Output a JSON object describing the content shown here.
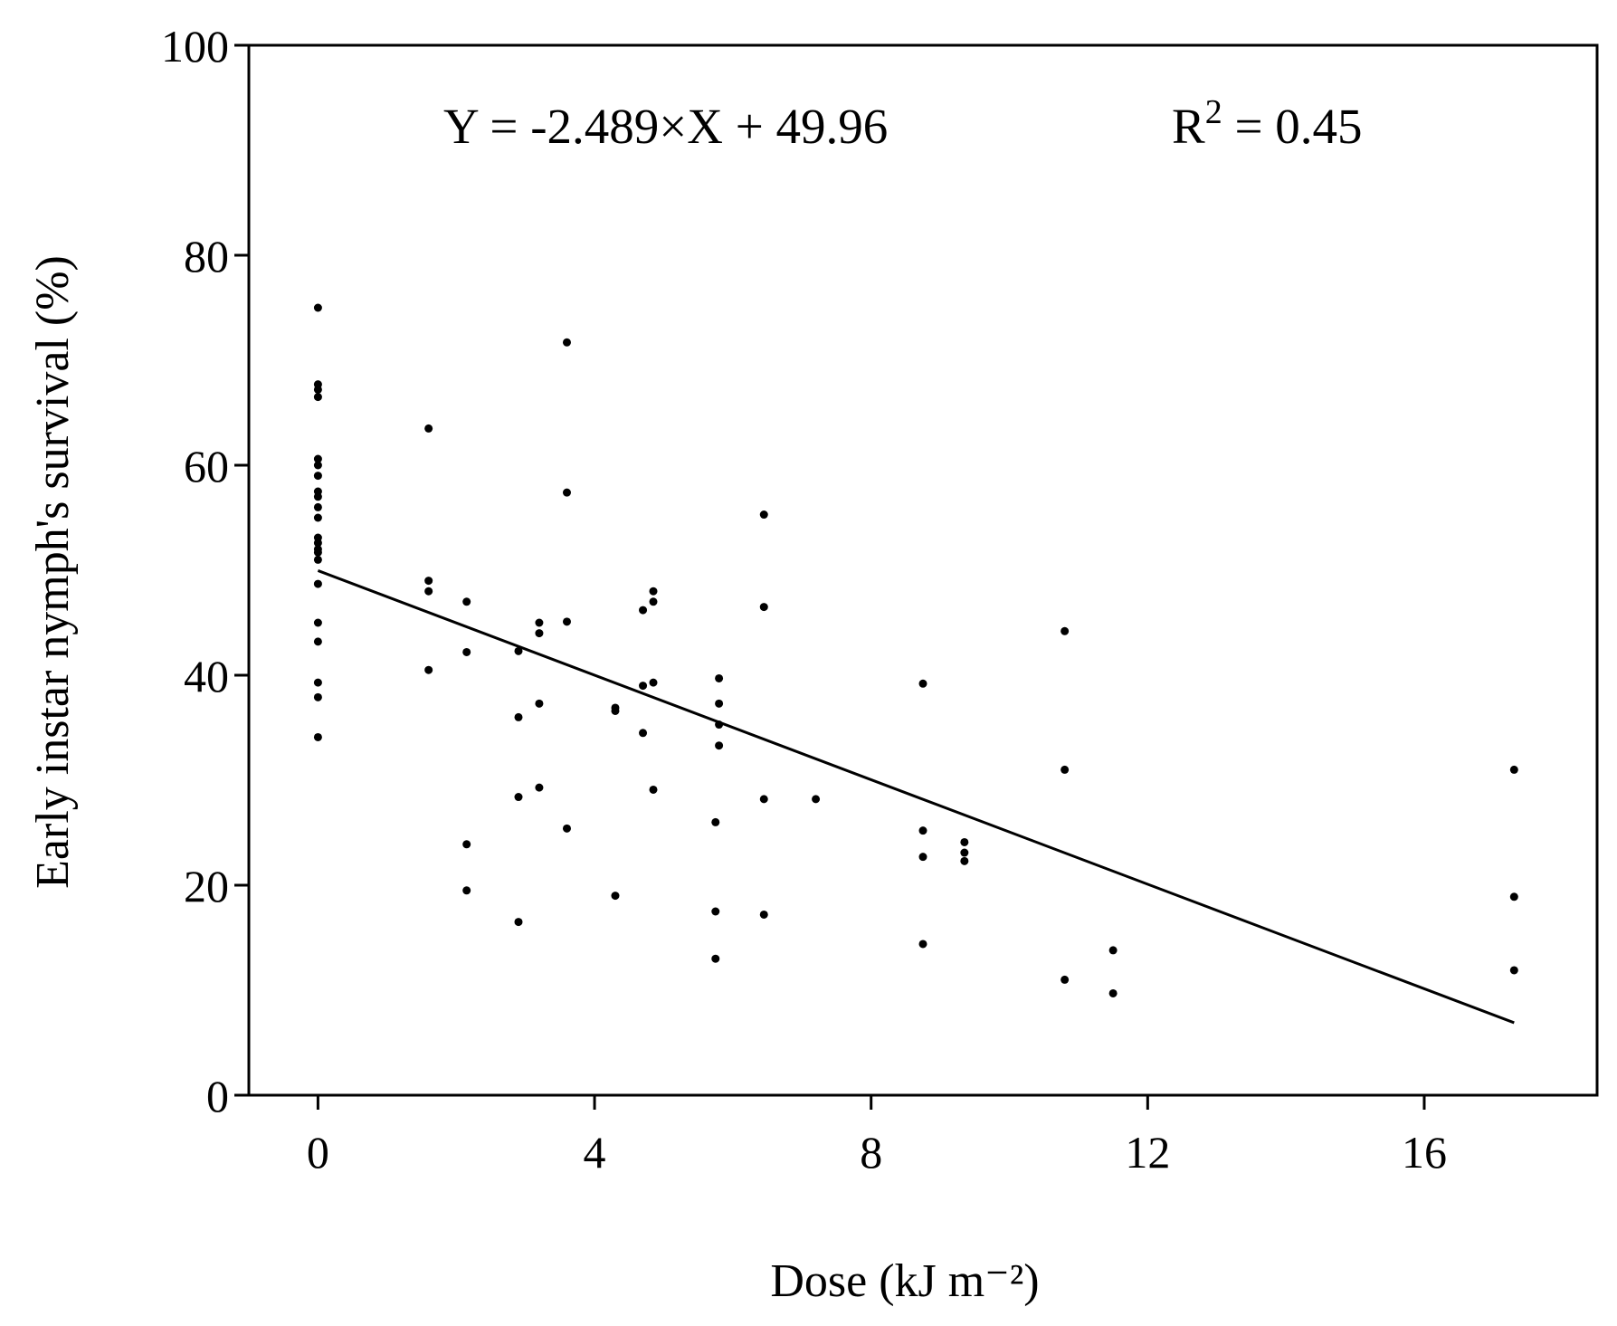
{
  "chart_data": {
    "type": "scatter",
    "xlabel": "Dose (kJ m⁻²)",
    "ylabel": "Early instar nymph's survival (%)",
    "xlim": [
      -1,
      18.5
    ],
    "ylim": [
      0,
      100
    ],
    "xticks": [
      0,
      4,
      8,
      12,
      16
    ],
    "yticks": [
      0,
      20,
      40,
      60,
      80,
      100
    ],
    "grid": false,
    "annotation": {
      "equation": "Y = -2.489×X + 49.96",
      "r2_label": "R",
      "r2_exp": "2",
      "r2_value": " = 0.45"
    },
    "regression": {
      "slope": -2.489,
      "intercept": 49.96,
      "x_range": [
        0,
        17.3
      ]
    },
    "points": [
      [
        0,
        75
      ],
      [
        0,
        67.7
      ],
      [
        0,
        67.2
      ],
      [
        0,
        66.5
      ],
      [
        0,
        60.6
      ],
      [
        0,
        60
      ],
      [
        0,
        59
      ],
      [
        0,
        57.5
      ],
      [
        0,
        57
      ],
      [
        0,
        56
      ],
      [
        0,
        55
      ],
      [
        0,
        53.1
      ],
      [
        0,
        52.6
      ],
      [
        0,
        52
      ],
      [
        0,
        51.7
      ],
      [
        0,
        51
      ],
      [
        0,
        48.7
      ],
      [
        0,
        45
      ],
      [
        0,
        43.2
      ],
      [
        0,
        39.3
      ],
      [
        0,
        37.9
      ],
      [
        0,
        34.1
      ],
      [
        1.6,
        63.5
      ],
      [
        1.6,
        49
      ],
      [
        1.6,
        48
      ],
      [
        1.6,
        40.5
      ],
      [
        2.15,
        47
      ],
      [
        2.15,
        42.2
      ],
      [
        2.15,
        23.9
      ],
      [
        2.15,
        19.5
      ],
      [
        2.9,
        42.3
      ],
      [
        2.9,
        36
      ],
      [
        2.9,
        28.4
      ],
      [
        2.9,
        16.5
      ],
      [
        3.2,
        45
      ],
      [
        3.2,
        44
      ],
      [
        3.2,
        37.3
      ],
      [
        3.2,
        29.3
      ],
      [
        3.6,
        71.7
      ],
      [
        3.6,
        57.4
      ],
      [
        3.6,
        45.1
      ],
      [
        3.6,
        25.4
      ],
      [
        4.3,
        36.9
      ],
      [
        4.3,
        36.6
      ],
      [
        4.3,
        19
      ],
      [
        4.7,
        46.2
      ],
      [
        4.7,
        39
      ],
      [
        4.7,
        34.5
      ],
      [
        4.85,
        48
      ],
      [
        4.85,
        47
      ],
      [
        4.85,
        39.3
      ],
      [
        4.85,
        29.1
      ],
      [
        5.75,
        26
      ],
      [
        5.75,
        17.5
      ],
      [
        5.75,
        13
      ],
      [
        5.8,
        39.7
      ],
      [
        5.8,
        37.3
      ],
      [
        5.8,
        35.3
      ],
      [
        5.8,
        33.3
      ],
      [
        6.45,
        55.3
      ],
      [
        6.45,
        46.5
      ],
      [
        6.45,
        28.2
      ],
      [
        6.45,
        17.2
      ],
      [
        7.2,
        28.2
      ],
      [
        8.75,
        39.2
      ],
      [
        8.75,
        25.2
      ],
      [
        8.75,
        22.7
      ],
      [
        8.75,
        14.4
      ],
      [
        9.35,
        24.1
      ],
      [
        9.35,
        23.1
      ],
      [
        9.35,
        22.3
      ],
      [
        10.8,
        44.2
      ],
      [
        10.8,
        31
      ],
      [
        10.8,
        11
      ],
      [
        11.5,
        13.8
      ],
      [
        11.5,
        9.7
      ],
      [
        17.3,
        31
      ],
      [
        17.3,
        18.9
      ],
      [
        17.3,
        11.9
      ]
    ]
  }
}
